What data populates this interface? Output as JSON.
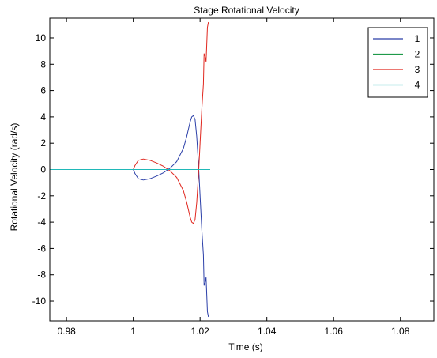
{
  "chart_data": {
    "type": "line",
    "title": "Stage Rotational Velocity",
    "xlabel": "Time (s)",
    "ylabel": "Rotational Velocity (rad/s)",
    "xlim": [
      0.975,
      1.09
    ],
    "ylim": [
      -11.5,
      11.5
    ],
    "x_ticks": [
      0.98,
      1.0,
      1.02,
      1.04,
      1.06,
      1.08
    ],
    "x_tick_labels": [
      "0.98",
      "1",
      "1.02",
      "1.04",
      "1.06",
      "1.08"
    ],
    "y_ticks": [
      -10,
      -8,
      -6,
      -4,
      -2,
      0,
      2,
      4,
      6,
      8,
      10
    ],
    "y_tick_labels": [
      "-10",
      "-8",
      "-6",
      "-4",
      "-2",
      "0",
      "2",
      "4",
      "6",
      "8",
      "10"
    ],
    "grid": false,
    "legend_position": "top-right",
    "series": [
      {
        "name": "1",
        "color": "#2b3fa8",
        "x": [
          0.975,
          1.0,
          1.0005,
          1.0015,
          1.003,
          1.005,
          1.007,
          1.009,
          1.011,
          1.013,
          1.015,
          1.016,
          1.017,
          1.0175,
          1.018,
          1.0185,
          1.019,
          1.0195,
          1.02,
          1.0205,
          1.021,
          1.0212,
          1.0215,
          1.0218,
          1.022,
          1.0222,
          1.0225
        ],
        "y": [
          0,
          0,
          -0.3,
          -0.7,
          -0.8,
          -0.7,
          -0.5,
          -0.25,
          0.1,
          0.6,
          1.6,
          2.5,
          3.6,
          4.0,
          4.1,
          3.8,
          2.5,
          0.5,
          -2.0,
          -4.5,
          -6.5,
          -8.8,
          -8.6,
          -8.2,
          -9.5,
          -10.8,
          -11.2
        ]
      },
      {
        "name": "2",
        "color": "#1f9a4a",
        "x": [
          0.975,
          1.023
        ],
        "y": [
          0,
          0
        ]
      },
      {
        "name": "3",
        "color": "#e0271f",
        "x": [
          0.975,
          1.0,
          1.0005,
          1.0015,
          1.003,
          1.005,
          1.007,
          1.009,
          1.011,
          1.013,
          1.015,
          1.016,
          1.017,
          1.0175,
          1.018,
          1.0185,
          1.019,
          1.0195,
          1.02,
          1.0205,
          1.021,
          1.0212,
          1.0215,
          1.0218,
          1.022,
          1.0222,
          1.0225
        ],
        "y": [
          0,
          0,
          0.3,
          0.7,
          0.8,
          0.7,
          0.5,
          0.25,
          -0.1,
          -0.6,
          -1.6,
          -2.5,
          -3.6,
          -4.0,
          -4.1,
          -3.8,
          -2.5,
          -0.5,
          2.0,
          4.5,
          6.5,
          8.8,
          8.6,
          8.2,
          9.5,
          10.8,
          11.2
        ]
      },
      {
        "name": "4",
        "color": "#20b8b8",
        "x": [
          0.975,
          1.023
        ],
        "y": [
          0,
          0
        ]
      }
    ]
  }
}
